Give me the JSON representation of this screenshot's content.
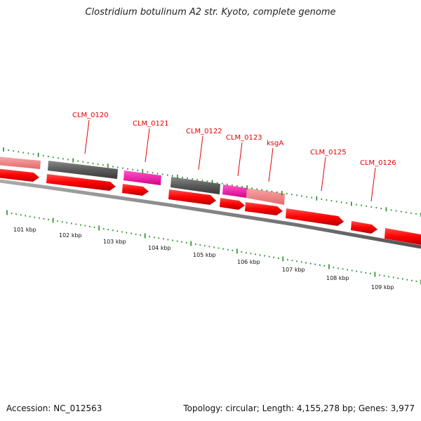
{
  "title": "Clostridium botulinum A2 str. Kyoto, complete genome",
  "footer": {
    "accession": "Accession: NC_012563",
    "topology": "Topology: circular; Length: 4,155,278 bp; Genes: 3,977"
  },
  "colors": {
    "gene_red": "#ff0000",
    "gene_pink": "#f08080",
    "gene_gray": "#555555",
    "gene_magenta": "#ff00aa",
    "tick_green": "#228b22",
    "label_red": "#e00000",
    "backbone": "#777777"
  },
  "gene_labels": [
    "CLM_0120",
    "CLM_0121",
    "CLM_0122",
    "CLM_0123",
    "ksgA",
    "CLM_0125",
    "CLM_0126"
  ],
  "kbp_labels": [
    "101 kbp",
    "102 kbp",
    "103 kbp",
    "104 kbp",
    "105 kbp",
    "106 kbp",
    "107 kbp",
    "108 kbp",
    "109 kbp"
  ]
}
